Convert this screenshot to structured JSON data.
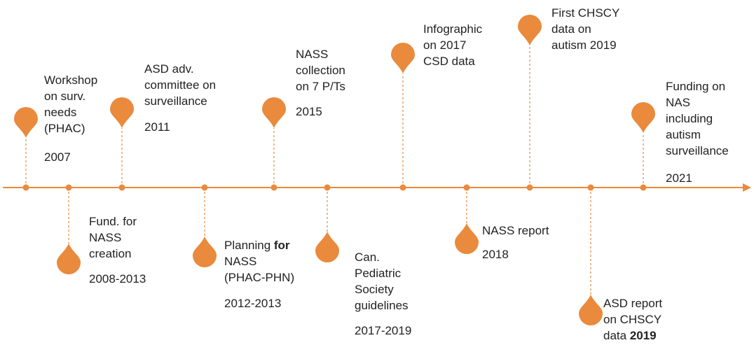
{
  "accent_color": "#ea8a3c",
  "events": [
    {
      "id": "workshop",
      "label": "Workshop\non surv.\nneeds\n(PHAC)",
      "year": "2007",
      "side": "above"
    },
    {
      "id": "nass-funding",
      "label": "Fund. for\nNASS\ncreation",
      "year": "2008-2013",
      "side": "below"
    },
    {
      "id": "asd-committee",
      "label": "ASD adv.\ncommittee on\nsurveillance",
      "year": "2011",
      "side": "above"
    },
    {
      "id": "planning",
      "label_pre": "Planning ",
      "label_bold": "for",
      "label_post": "\nNASS\n(PHAC-PHN)",
      "year": "2012-2013",
      "side": "below"
    },
    {
      "id": "nass-collection",
      "label": "NASS\ncollection\non 7 P/Ts",
      "year": "2015",
      "side": "above"
    },
    {
      "id": "cps-guidelines",
      "label": "Can.\nPediatric\nSociety\nguidelines",
      "year": "2017-2019",
      "side": "below"
    },
    {
      "id": "infographic",
      "label": "Infographic\non 2017\nCSD data",
      "year": "",
      "side": "above"
    },
    {
      "id": "nass-report",
      "label": "NASS report",
      "year": "2018",
      "side": "below"
    },
    {
      "id": "chscy-data",
      "label": "First CHSCY\ndata on\nautism 2019",
      "year": "",
      "side": "above"
    },
    {
      "id": "asd-report",
      "label": "ASD report\non CHSCY\ndata ",
      "label_bold": "2019",
      "year": "",
      "side": "below"
    },
    {
      "id": "nas-funding",
      "label": "Funding on\nNAS\nincluding\nautism\nsurveillance",
      "year": "2021",
      "side": "above"
    }
  ]
}
